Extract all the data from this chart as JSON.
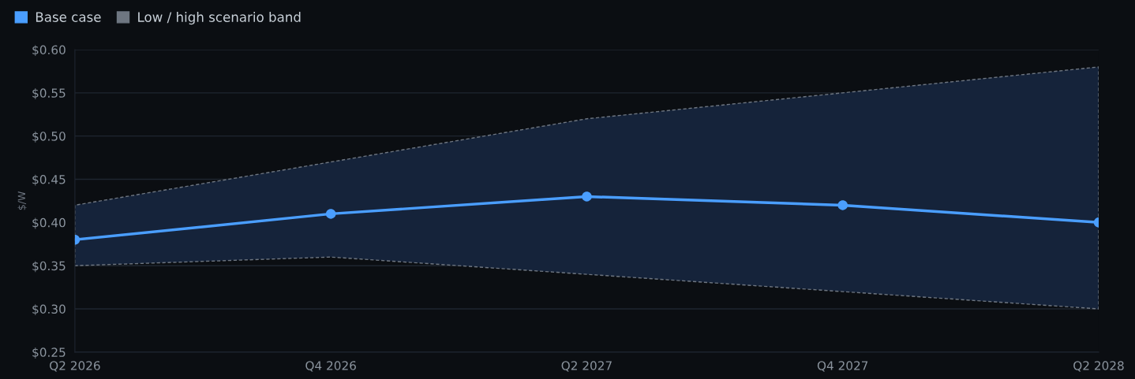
{
  "chart_data": {
    "type": "line",
    "ylabel": "$/W",
    "categories": [
      "Q2 2026",
      "Q4 2026",
      "Q2 2027",
      "Q4 2027",
      "Q2 2028"
    ],
    "series": [
      {
        "name": "Base case",
        "color": "#4a9eff",
        "values": [
          0.38,
          0.41,
          0.43,
          0.42,
          0.4
        ],
        "marker": "circle",
        "lower": [
          0.35,
          0.36,
          0.34,
          0.32,
          0.3
        ],
        "upper": [
          0.42,
          0.47,
          0.52,
          0.55,
          0.58
        ]
      },
      {
        "name": "Low / high scenario band",
        "type": "area",
        "color": "#6e7681",
        "values": [
          null,
          null,
          null,
          null,
          null
        ],
        "line_style": "dashed"
      }
    ],
    "ylim": [
      0.25,
      0.6
    ],
    "yticks": [
      {
        "value": 0.25,
        "label": "$0.25"
      },
      {
        "value": 0.3,
        "label": "$0.30"
      },
      {
        "value": 0.35,
        "label": "$0.35"
      },
      {
        "value": 0.4,
        "label": "$0.40"
      },
      {
        "value": 0.45,
        "label": "$0.45"
      },
      {
        "value": 0.5,
        "label": "$0.50"
      },
      {
        "value": 0.55,
        "label": "$0.55"
      },
      {
        "value": 0.6,
        "label": "$0.60"
      }
    ],
    "grid": "y",
    "legend": "top left"
  }
}
